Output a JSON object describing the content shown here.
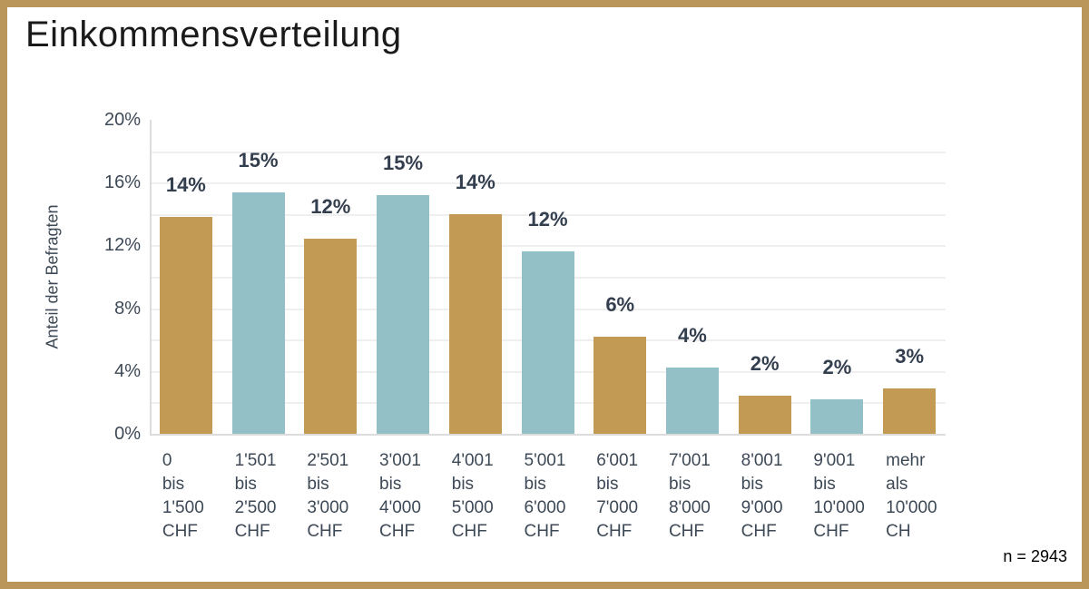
{
  "title": "Einkommensverteilung",
  "colors": {
    "gold": "#c39a53",
    "blue": "#93bfc7",
    "border_gold": "#ba965a",
    "gridline": "#efefef",
    "axis_line": "#dcdcdc",
    "text_dark": "#3d4956",
    "value_label": "#333e4e",
    "title_color": "#1a1a1a"
  },
  "chart_data": {
    "type": "bar",
    "title": "Einkommensverteilung",
    "xlabel": "",
    "ylabel": "Anteil der Befragten",
    "ylim": [
      0,
      20
    ],
    "grid": true,
    "gridline_step_pct": 2,
    "legend_position": "none",
    "yticks": [
      "0%",
      "4%",
      "8%",
      "12%",
      "16%",
      "20%"
    ],
    "ytick_values": [
      0,
      4,
      8,
      12,
      16,
      20
    ],
    "categories": [
      "0 bis 1'500 CHF",
      "1'501 bis 2'500 CHF",
      "2'501 bis 3'000 CHF",
      "3'001 bis 4'000 CHF",
      "4'001 bis 5'000 CHF",
      "5'001 bis 6'000 CHF",
      "6'001 bis 7'000 CHF",
      "7'001 bis 8'000 CHF",
      "8'001 bis 9'000 CHF",
      "9'001 bis 10'000 CHF",
      "mehr als 10'000 CH"
    ],
    "values": [
      13.8,
      15.4,
      12.4,
      15.2,
      14.0,
      11.6,
      6.2,
      4.2,
      2.4,
      2.2,
      2.9
    ],
    "value_labels": [
      "14%",
      "15%",
      "12%",
      "15%",
      "14%",
      "12%",
      "6%",
      "4%",
      "2%",
      "2%",
      "3%"
    ],
    "bar_color_keys": [
      "gold",
      "blue",
      "gold",
      "blue",
      "gold",
      "blue",
      "gold",
      "blue",
      "gold",
      "blue",
      "gold"
    ],
    "n_label": "n = 2943"
  }
}
